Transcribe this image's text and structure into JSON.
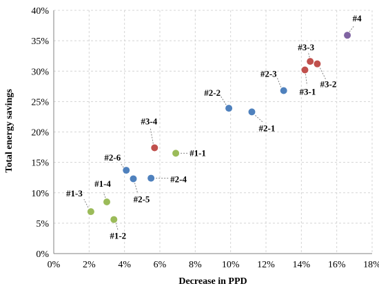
{
  "chart_data": {
    "type": "scatter",
    "title": "",
    "xlabel": "Decrease in PPD",
    "ylabel": "Total energy savings",
    "xlim": [
      0,
      18
    ],
    "ylim": [
      0,
      40
    ],
    "x_ticks": [
      0,
      2,
      4,
      6,
      8,
      10,
      12,
      14,
      16,
      18
    ],
    "y_ticks": [
      0,
      5,
      10,
      15,
      20,
      25,
      30,
      35,
      40
    ],
    "x_tick_labels": [
      "0%",
      "2%",
      "4%",
      "6%",
      "8%",
      "10%",
      "12%",
      "14%",
      "16%",
      "18%"
    ],
    "y_tick_labels": [
      "0%",
      "5%",
      "10%",
      "15%",
      "20%",
      "25%",
      "30%",
      "35%",
      "40%"
    ],
    "grid": true,
    "legend": "none",
    "group_colors": {
      "1": "#9bbb59",
      "2": "#4f81bd",
      "3": "#c0504d",
      "4": "#8064a2"
    },
    "points": [
      {
        "label": "#1-1",
        "group": "1",
        "x": 6.9,
        "y": 16.5
      },
      {
        "label": "#1-2",
        "group": "1",
        "x": 3.4,
        "y": 5.6
      },
      {
        "label": "#1-3",
        "group": "1",
        "x": 2.1,
        "y": 6.9
      },
      {
        "label": "#1-4",
        "group": "1",
        "x": 3.0,
        "y": 8.5
      },
      {
        "label": "#2-1",
        "group": "2",
        "x": 11.2,
        "y": 23.3
      },
      {
        "label": "#2-2",
        "group": "2",
        "x": 9.9,
        "y": 23.9
      },
      {
        "label": "#2-3",
        "group": "2",
        "x": 13.0,
        "y": 26.8
      },
      {
        "label": "#2-4",
        "group": "2",
        "x": 5.5,
        "y": 12.4
      },
      {
        "label": "#2-5",
        "group": "2",
        "x": 4.5,
        "y": 12.3
      },
      {
        "label": "#2-6",
        "group": "2",
        "x": 4.1,
        "y": 13.7
      },
      {
        "label": "#3-1",
        "group": "3",
        "x": 14.2,
        "y": 30.2
      },
      {
        "label": "#3-2",
        "group": "3",
        "x": 14.9,
        "y": 31.2
      },
      {
        "label": "#3-3",
        "group": "3",
        "x": 14.5,
        "y": 31.6
      },
      {
        "label": "#3-4",
        "group": "3",
        "x": 5.7,
        "y": 17.4
      },
      {
        "label": "#4",
        "group": "4",
        "x": 16.6,
        "y": 35.9
      }
    ]
  }
}
